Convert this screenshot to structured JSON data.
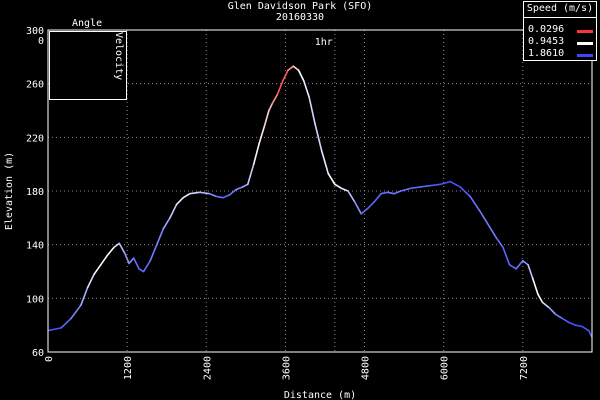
{
  "chart_data": {
    "type": "line",
    "title": "Glen Davidson Park (SFO)",
    "subtitle": "20160330",
    "xlabel": "Distance (m)",
    "ylabel": "Elevation (m)",
    "xlim": [
      0,
      8250
    ],
    "ylim": [
      60,
      300
    ],
    "x_ticks": [
      0,
      1200,
      2400,
      3600,
      4800,
      6000,
      7200
    ],
    "y_ticks": [
      60,
      100,
      140,
      180,
      220,
      260,
      300
    ],
    "grid": true,
    "legend_position": "top-right",
    "time_marker": {
      "label": "1hr",
      "x": 4350
    },
    "legend": {
      "title": "Speed (m/s)",
      "entries": [
        {
          "label": "0.0296",
          "color": "#ff3333"
        },
        {
          "label": "0.9453",
          "color": "#ffffff"
        },
        {
          "label": "1.8610",
          "color": "#3b46ff"
        }
      ]
    },
    "inset": {
      "title": "Angle",
      "left_label": "0",
      "right_label": "Velocity"
    },
    "series": [
      {
        "color_by": "speed",
        "points": [
          [
            0,
            76,
            1.8
          ],
          [
            200,
            78,
            1.8
          ],
          [
            350,
            85,
            1.6
          ],
          [
            500,
            95,
            1.5
          ],
          [
            600,
            108,
            1.2
          ],
          [
            700,
            118,
            1.0
          ],
          [
            800,
            125,
            0.9
          ],
          [
            900,
            132,
            0.9
          ],
          [
            1000,
            138,
            1.0
          ],
          [
            1080,
            141,
            1.2
          ],
          [
            1160,
            134,
            1.4
          ],
          [
            1230,
            126,
            1.5
          ],
          [
            1300,
            130,
            1.6
          ],
          [
            1380,
            122,
            1.7
          ],
          [
            1450,
            120,
            1.7
          ],
          [
            1550,
            128,
            1.6
          ],
          [
            1650,
            140,
            1.6
          ],
          [
            1750,
            152,
            1.5
          ],
          [
            1850,
            160,
            1.3
          ],
          [
            1950,
            170,
            1.1
          ],
          [
            2050,
            175,
            1.0
          ],
          [
            2150,
            178,
            1.1
          ],
          [
            2300,
            179,
            1.2
          ],
          [
            2450,
            178,
            1.4
          ],
          [
            2550,
            176,
            1.6
          ],
          [
            2650,
            175,
            1.7
          ],
          [
            2750,
            177,
            1.7
          ],
          [
            2850,
            181,
            1.6
          ],
          [
            2950,
            183,
            1.5
          ],
          [
            3030,
            185,
            1.3
          ],
          [
            3120,
            200,
            1.1
          ],
          [
            3200,
            215,
            0.9
          ],
          [
            3280,
            228,
            0.8
          ],
          [
            3350,
            240,
            0.7
          ],
          [
            3400,
            245,
            0.6
          ],
          [
            3480,
            252,
            0.3
          ],
          [
            3560,
            262,
            0.1
          ],
          [
            3640,
            270,
            0.3
          ],
          [
            3720,
            273,
            0.6
          ],
          [
            3800,
            270,
            0.9
          ],
          [
            3880,
            262,
            1.0
          ],
          [
            3960,
            250,
            1.1
          ],
          [
            4050,
            230,
            1.2
          ],
          [
            4150,
            210,
            1.1
          ],
          [
            4250,
            193,
            1.0
          ],
          [
            4350,
            185,
            0.9
          ],
          [
            4450,
            182,
            1.0
          ],
          [
            4550,
            180,
            1.1
          ],
          [
            4650,
            172,
            1.4
          ],
          [
            4750,
            163,
            1.6
          ],
          [
            4850,
            167,
            1.7
          ],
          [
            4950,
            172,
            1.7
          ],
          [
            5050,
            178,
            1.7
          ],
          [
            5150,
            179,
            1.6
          ],
          [
            5250,
            178,
            1.6
          ],
          [
            5350,
            180,
            1.6
          ],
          [
            5500,
            182,
            1.7
          ],
          [
            5650,
            183,
            1.7
          ],
          [
            5800,
            184,
            1.7
          ],
          [
            5950,
            185,
            1.8
          ],
          [
            6100,
            187,
            1.8
          ],
          [
            6250,
            183,
            1.8
          ],
          [
            6400,
            176,
            1.7
          ],
          [
            6550,
            165,
            1.6
          ],
          [
            6700,
            153,
            1.6
          ],
          [
            6800,
            145,
            1.6
          ],
          [
            6900,
            138,
            1.7
          ],
          [
            7000,
            125,
            1.7
          ],
          [
            7100,
            122,
            1.7
          ],
          [
            7200,
            128,
            1.6
          ],
          [
            7280,
            125,
            1.4
          ],
          [
            7350,
            115,
            1.1
          ],
          [
            7430,
            103,
            0.8
          ],
          [
            7500,
            97,
            1.0
          ],
          [
            7600,
            93,
            1.3
          ],
          [
            7700,
            88,
            1.5
          ],
          [
            7800,
            85,
            1.7
          ],
          [
            7900,
            82,
            1.8
          ],
          [
            8000,
            80,
            1.8
          ],
          [
            8100,
            79,
            1.8
          ],
          [
            8200,
            76,
            1.8
          ],
          [
            8250,
            71,
            1.8
          ]
        ]
      }
    ]
  }
}
